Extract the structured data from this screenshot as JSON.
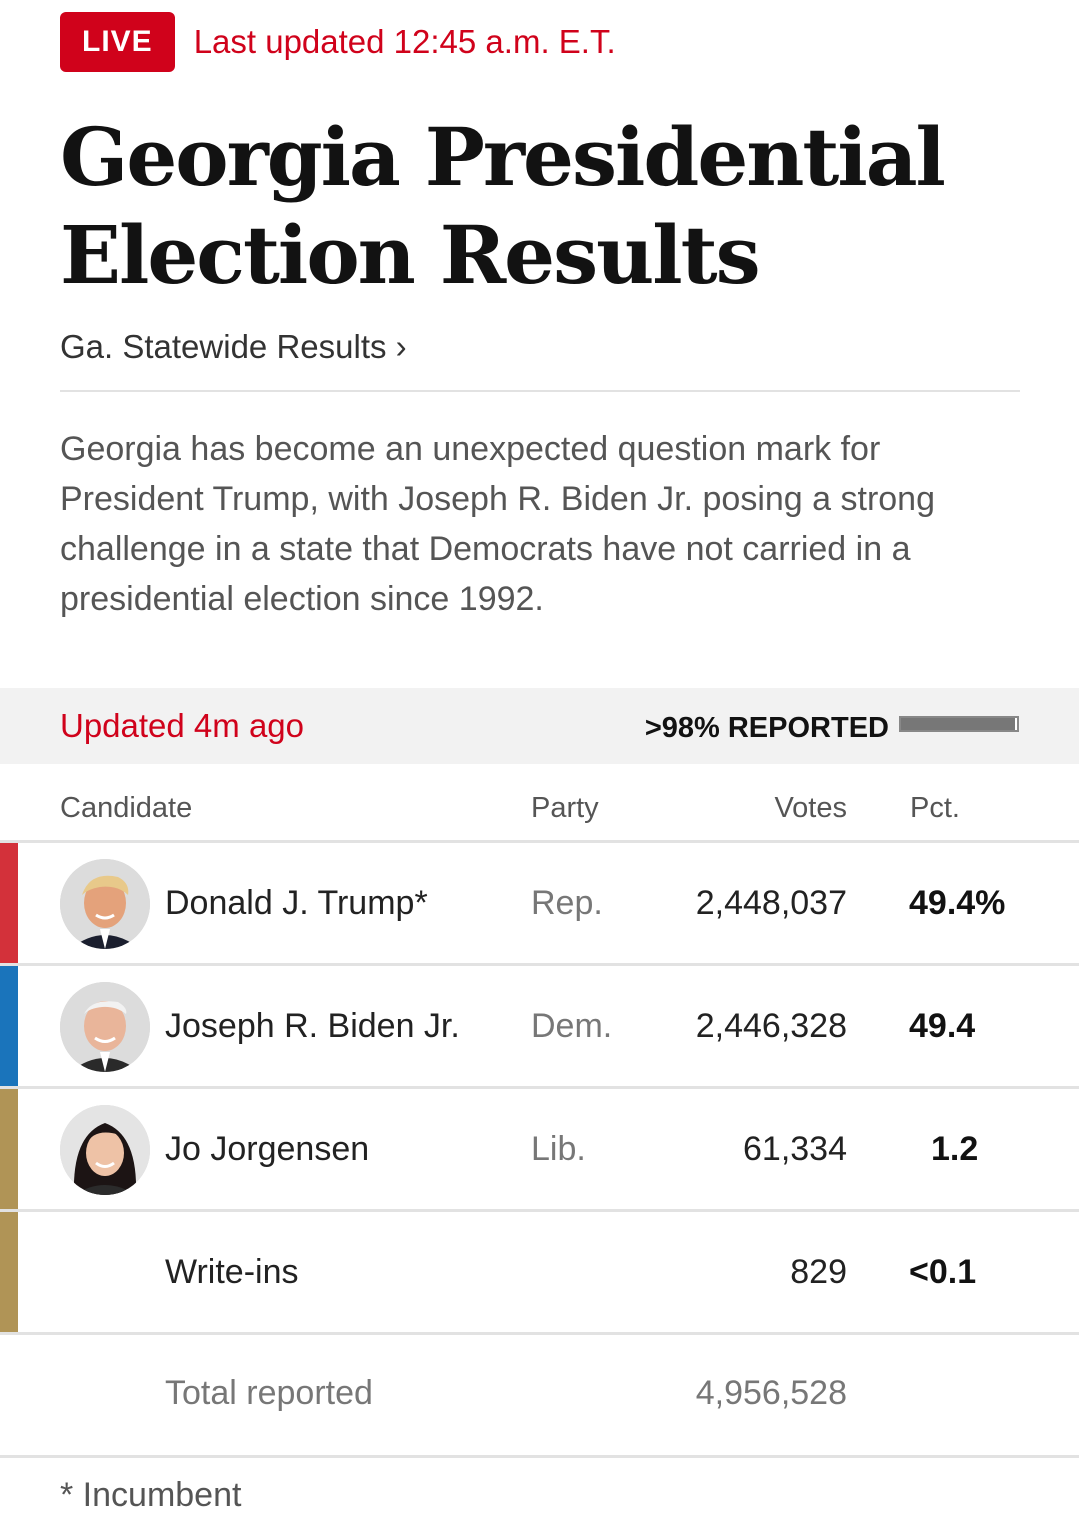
{
  "header": {
    "live_badge": "LIVE",
    "last_updated": "Last updated 12:45 a.m. E.T.",
    "title_line1": "Georgia Presidential",
    "title_line2": "Election Results",
    "breadcrumb": "Ga. Statewide Results ›",
    "description": "Georgia has become an unexpected question mark for President Trump, with Joseph R. Biden Jr. posing a strong challenge in a state that Democrats have not carried in a presidential election since 1992."
  },
  "status": {
    "updated": "Updated 4m ago",
    "reported": ">98% REPORTED",
    "reported_fraction": 0.98
  },
  "table": {
    "headers": {
      "candidate": "Candidate",
      "party": "Party",
      "votes": "Votes",
      "pct": "Pct."
    },
    "rows": [
      {
        "name": "Donald J. Trump*",
        "party": "Rep.",
        "votes": "2,448,037",
        "pct": "49.4%",
        "color": "#d3313a",
        "avatar": "trump-portrait"
      },
      {
        "name": "Joseph R. Biden Jr.",
        "party": "Dem.",
        "votes": "2,446,328",
        "pct": "49.4",
        "color": "#1a74bb",
        "avatar": "biden-portrait"
      },
      {
        "name": "Jo Jorgensen",
        "party": "Lib.",
        "votes": "61,334",
        "pct": "1.2",
        "color": "#b09456",
        "avatar": "jorgensen-portrait"
      },
      {
        "name": "Write-ins",
        "party": "",
        "votes": "829",
        "pct": "<0.1",
        "color": "#b09456"
      }
    ],
    "total_label": "Total reported",
    "total_votes": "4,956,528"
  },
  "footnote": "* Incumbent"
}
